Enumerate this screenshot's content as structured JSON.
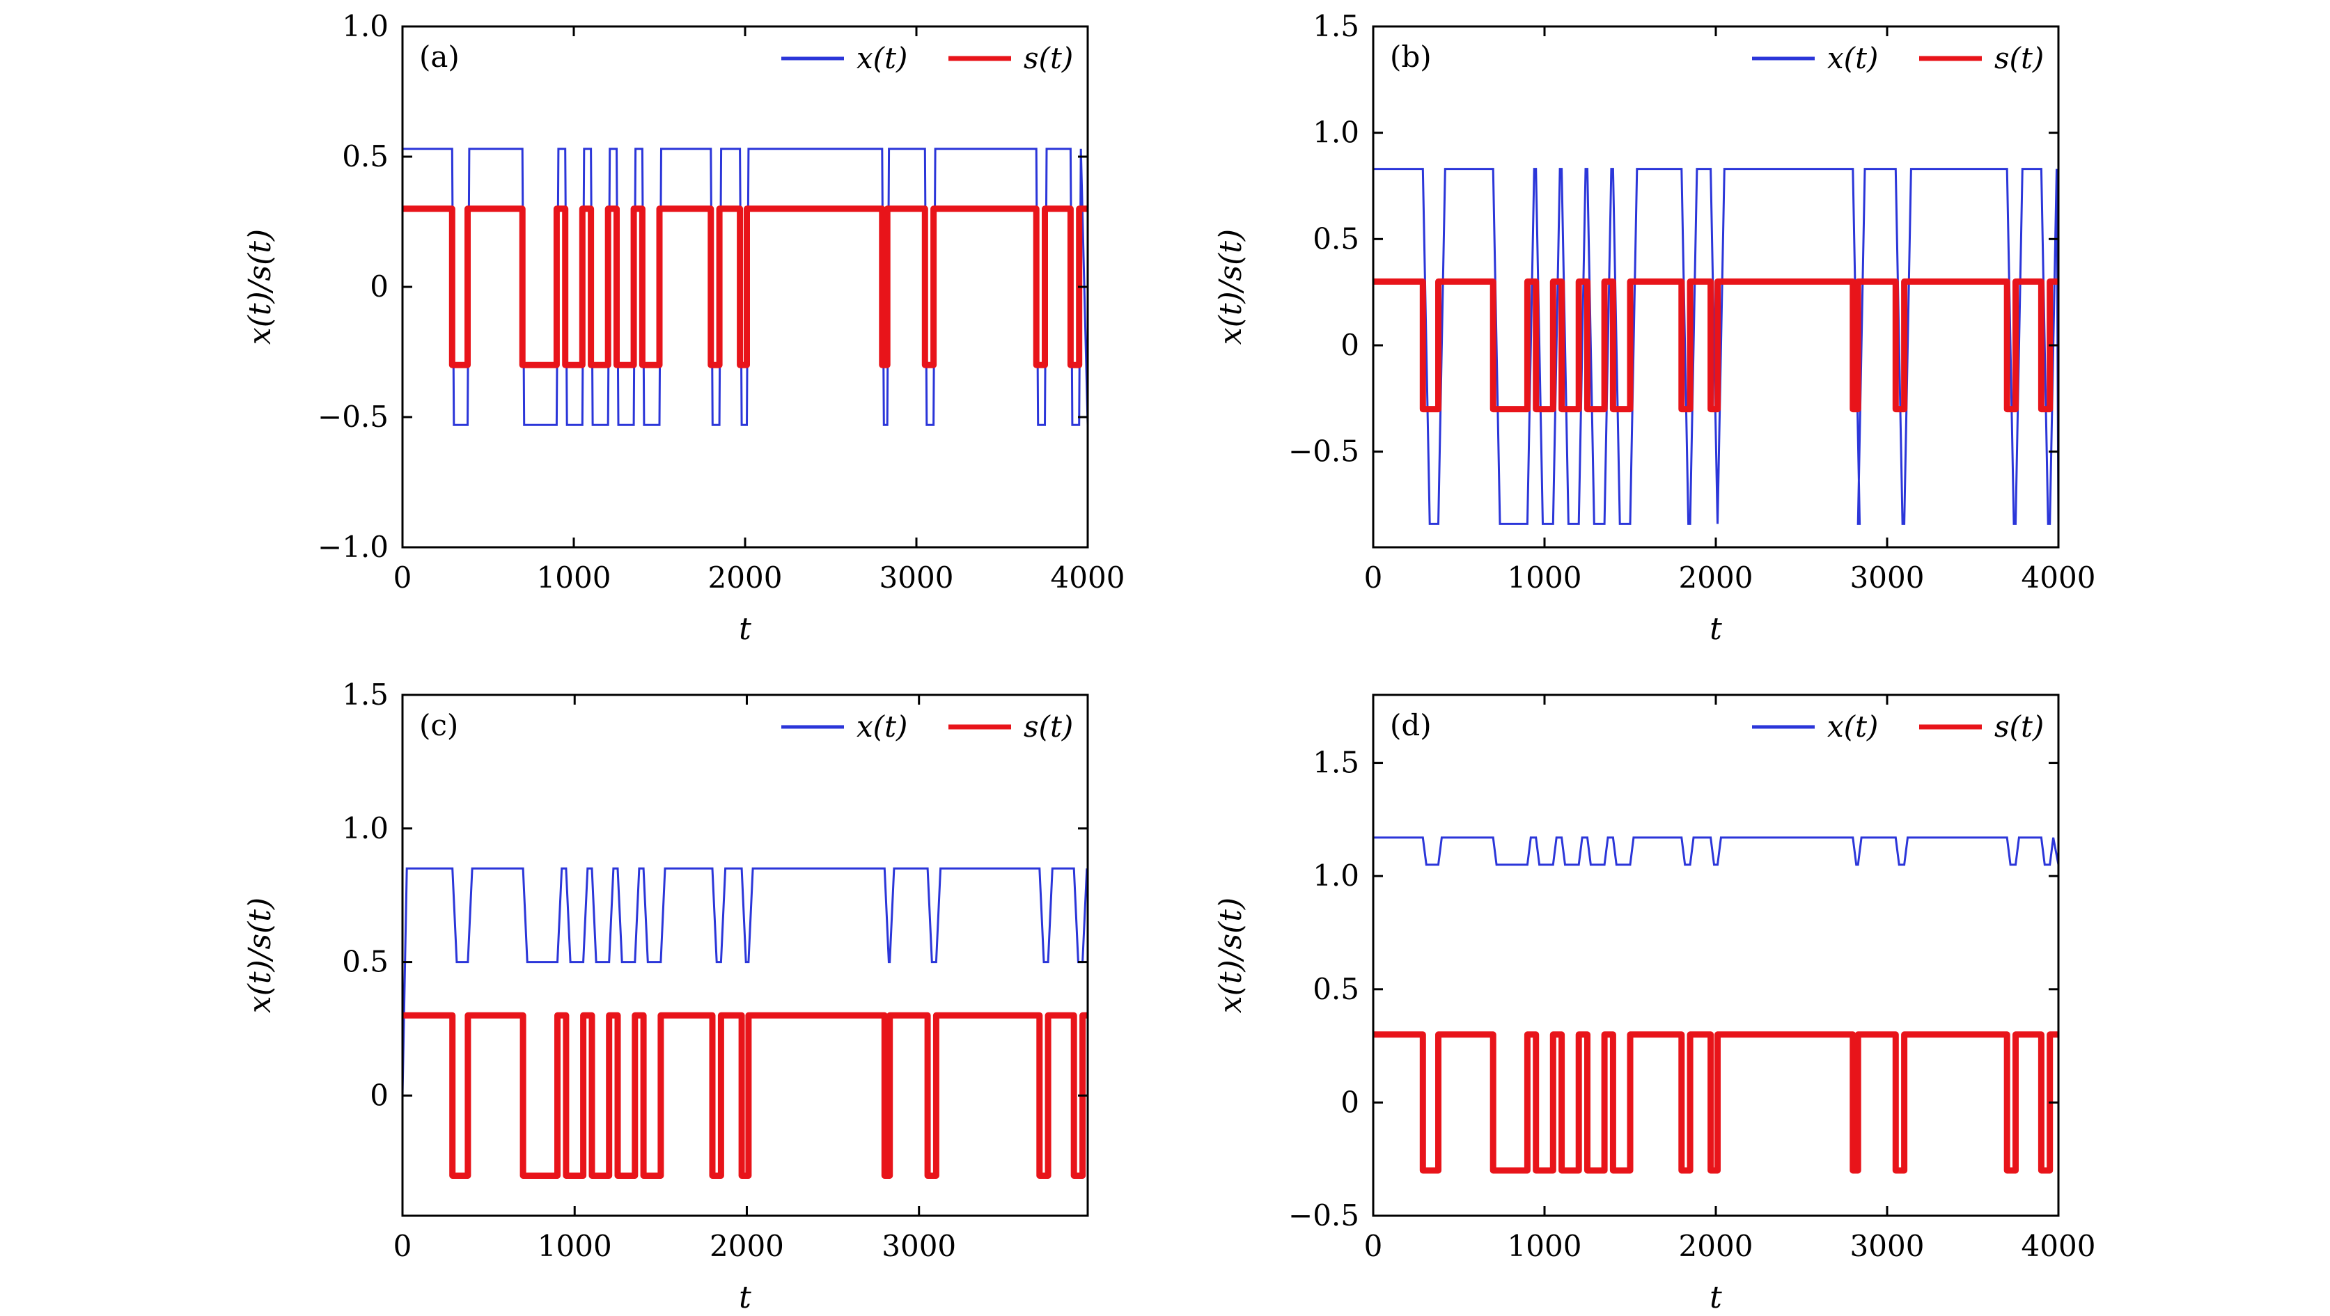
{
  "colors": {
    "x_series": "#2b36d9",
    "s_series": "#e8141a",
    "axis": "#000000"
  },
  "s_switch_times": [
    0,
    290,
    380,
    700,
    900,
    950,
    1050,
    1100,
    1200,
    1250,
    1350,
    1400,
    1500,
    1800,
    1850,
    1970,
    2010,
    2800,
    2830,
    3050,
    3100,
    3700,
    3750,
    3900,
    3950,
    4000
  ],
  "chart_data": [
    {
      "type": "line",
      "panel": "(a)",
      "xlabel": "t",
      "ylabel": "x(t)/s(t)",
      "xlim": [
        0,
        4000
      ],
      "ylim": [
        -1.0,
        1.0
      ],
      "xticks": [
        "0",
        "1000",
        "2000",
        "3000",
        "4000"
      ],
      "yticks": [
        "−1.0",
        "−0.5",
        "0",
        "0.5",
        "1.0"
      ],
      "ytick_values": [
        -1.0,
        -0.5,
        0,
        0.5,
        1.0
      ],
      "legend_position": "top-right",
      "series": [
        {
          "name": "x(t)",
          "high": 0.53,
          "low": -0.53,
          "start": 0.53,
          "ramp": 10
        },
        {
          "name": "s(t)",
          "high": 0.3,
          "low": -0.3
        }
      ]
    },
    {
      "type": "line",
      "panel": "(b)",
      "xlabel": "t",
      "ylabel": "x(t)/s(t)",
      "xlim": [
        0,
        4000
      ],
      "ylim": [
        -0.95,
        1.5
      ],
      "xticks": [
        "0",
        "1000",
        "2000",
        "3000",
        "4000"
      ],
      "yticks": [
        "−0.5",
        "0",
        "0.5",
        "1.0",
        "1.5"
      ],
      "ytick_values": [
        -0.5,
        0,
        0.5,
        1.0,
        1.5
      ],
      "legend_position": "top-right",
      "series": [
        {
          "name": "x(t)",
          "high": 0.83,
          "low": -0.84,
          "start": 0.83,
          "ramp": 40
        },
        {
          "name": "s(t)",
          "high": 0.3,
          "low": -0.3
        }
      ]
    },
    {
      "type": "line",
      "panel": "(c)",
      "xlabel": "t",
      "ylabel": "x(t)/s(t)",
      "xlim": [
        0,
        3980
      ],
      "ylim": [
        -0.45,
        1.5
      ],
      "xticks": [
        "0",
        "1000",
        "2000",
        "3000"
      ],
      "yticks": [
        "0",
        "0.5",
        "1.0",
        "1.5"
      ],
      "ytick_values": [
        0,
        0.5,
        1.0,
        1.5
      ],
      "legend_position": "top-right",
      "series": [
        {
          "name": "x(t)",
          "high": 0.85,
          "low": 0.5,
          "start": 0.0,
          "ramp": 25
        },
        {
          "name": "s(t)",
          "high": 0.3,
          "low": -0.3
        }
      ]
    },
    {
      "type": "line",
      "panel": "(d)",
      "xlabel": "t",
      "ylabel": "x(t)/s(t)",
      "xlim": [
        0,
        4000
      ],
      "ylim": [
        -0.5,
        1.8
      ],
      "xticks": [
        "0",
        "1000",
        "2000",
        "3000",
        "4000"
      ],
      "yticks": [
        "−0.5",
        "0",
        "0.5",
        "1.0",
        "1.5"
      ],
      "ytick_values": [
        -0.5,
        0,
        0.5,
        1.0,
        1.5
      ],
      "legend_position": "top-right",
      "series": [
        {
          "name": "x(t)",
          "high": 1.17,
          "low": 1.05,
          "start": 1.17,
          "ramp": 20
        },
        {
          "name": "s(t)",
          "high": 0.3,
          "low": -0.3
        }
      ]
    }
  ]
}
